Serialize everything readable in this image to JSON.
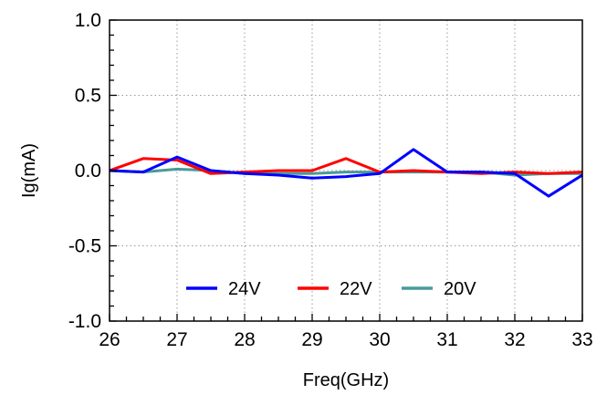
{
  "chart_data": {
    "type": "line",
    "xlabel": "Freq(GHz)",
    "ylabel": "Ig(mA)",
    "xlim": [
      26,
      33
    ],
    "ylim": [
      -1.0,
      1.0
    ],
    "x_ticks": [
      "26",
      "27",
      "28",
      "29",
      "30",
      "31",
      "32",
      "33"
    ],
    "y_ticks": [
      "1.0",
      "0.5",
      "0.0",
      "-0.5",
      "-1.0"
    ],
    "grid": true,
    "legend_placement": "bottom-center",
    "series": [
      {
        "name": "24V",
        "color": "#0000ff",
        "x": [
          26,
          26.5,
          27,
          27.5,
          28,
          28.5,
          29,
          29.5,
          30,
          30.5,
          31,
          31.5,
          32,
          32.5,
          33
        ],
        "y": [
          0.0,
          -0.01,
          0.09,
          0.0,
          -0.02,
          -0.03,
          -0.05,
          -0.04,
          -0.02,
          0.14,
          -0.01,
          -0.01,
          -0.02,
          -0.17,
          -0.03
        ]
      },
      {
        "name": "22V",
        "color": "#ff0000",
        "x": [
          26,
          26.5,
          27,
          27.5,
          28,
          28.5,
          29,
          29.5,
          30,
          30.5,
          31,
          31.5,
          32,
          32.5,
          33
        ],
        "y": [
          0.0,
          0.08,
          0.07,
          -0.02,
          -0.01,
          0.0,
          0.0,
          0.08,
          -0.01,
          0.0,
          -0.01,
          -0.02,
          -0.01,
          -0.02,
          -0.01
        ]
      },
      {
        "name": "20V",
        "color": "#4a9a9a",
        "x": [
          26,
          26.5,
          27,
          27.5,
          28,
          28.5,
          29,
          29.5,
          30,
          30.5,
          31,
          31.5,
          32,
          32.5,
          33
        ],
        "y": [
          0.0,
          -0.01,
          0.01,
          0.0,
          -0.02,
          -0.02,
          -0.02,
          -0.01,
          -0.01,
          -0.01,
          -0.01,
          -0.01,
          -0.03,
          -0.02,
          -0.02
        ]
      }
    ]
  }
}
